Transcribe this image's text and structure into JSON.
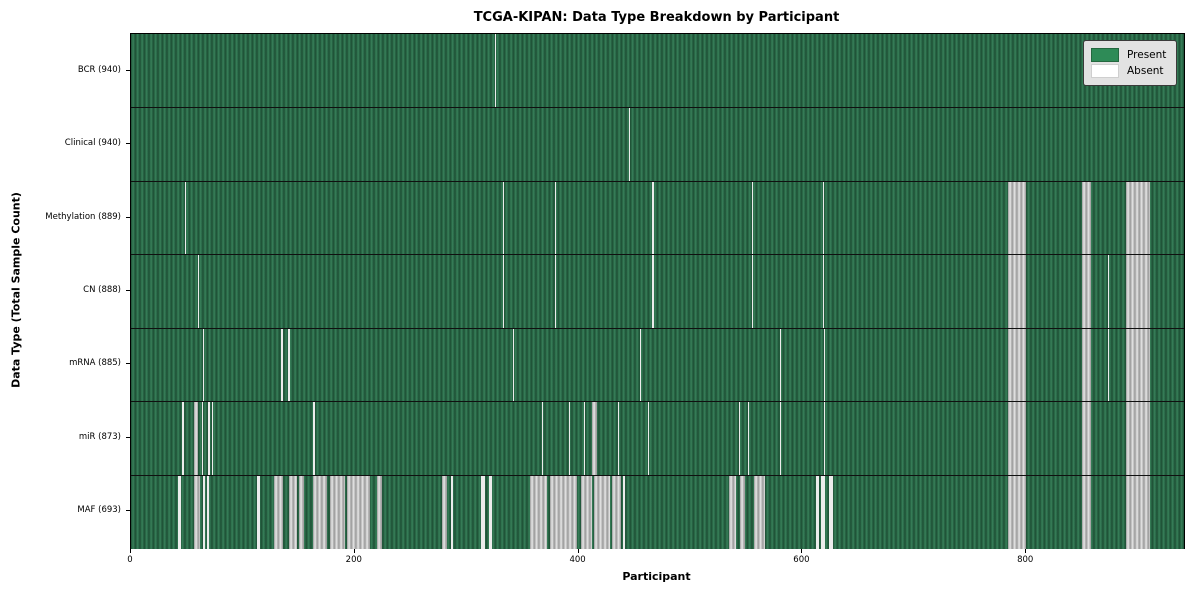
{
  "title": "TCGA-KIPAN: Data Type Breakdown by Participant",
  "x_axis_label": "Participant",
  "y_axis_label": "Data Type (Total Sample Count)",
  "legend": {
    "items": [
      {
        "label": "Present",
        "color": "#2e8b57"
      },
      {
        "label": "Absent",
        "color": "#ffffff"
      }
    ]
  },
  "colors": {
    "present_fill": "#2e8b57",
    "present_stripe_dark": "#1e4e34",
    "absent_fill": "#ffffff",
    "absent_stripe_gray": "#b4b4b4",
    "legend_background": "#e2e2e2",
    "plot_border": "#000000"
  },
  "chart_data": {
    "type": "heatmap",
    "title": "TCGA-KIPAN: Data Type Breakdown by Participant",
    "xlabel": "Participant",
    "ylabel": "Data Type (Total Sample Count)",
    "x_range": [
      0,
      941
    ],
    "x_ticks": [
      0,
      200,
      400,
      600,
      800
    ],
    "legend_entries": [
      "Present",
      "Absent"
    ],
    "cell_states": {
      "present": 1,
      "absent": 0
    },
    "rows": [
      {
        "data_type": "BCR",
        "label": "BCR (940)",
        "present_count": 940,
        "absent_ranges": [
          [
            325,
            326
          ]
        ]
      },
      {
        "data_type": "Clinical",
        "label": "Clinical (940)",
        "present_count": 940,
        "absent_ranges": [
          [
            445,
            446
          ]
        ]
      },
      {
        "data_type": "Methylation",
        "label": "Methylation (889)",
        "present_count": 889,
        "absent_ranges": [
          [
            48,
            49
          ],
          [
            332,
            333
          ],
          [
            379,
            380
          ],
          [
            466,
            467
          ],
          [
            555,
            556
          ],
          [
            618,
            619
          ],
          [
            784,
            800
          ],
          [
            850,
            858
          ],
          [
            889,
            911
          ]
        ]
      },
      {
        "data_type": "CN",
        "label": "CN (888)",
        "present_count": 888,
        "absent_ranges": [
          [
            60,
            61
          ],
          [
            332,
            333
          ],
          [
            379,
            380
          ],
          [
            466,
            467
          ],
          [
            555,
            556
          ],
          [
            618,
            619
          ],
          [
            784,
            800
          ],
          [
            850,
            858
          ],
          [
            873,
            874
          ],
          [
            889,
            911
          ]
        ]
      },
      {
        "data_type": "mRNA",
        "label": "mRNA (885)",
        "present_count": 885,
        "absent_ranges": [
          [
            64,
            65
          ],
          [
            134,
            136
          ],
          [
            140,
            142
          ],
          [
            341,
            342
          ],
          [
            455,
            456
          ],
          [
            580,
            581
          ],
          [
            619,
            620
          ],
          [
            784,
            800
          ],
          [
            850,
            858
          ],
          [
            873,
            874
          ],
          [
            889,
            911
          ]
        ]
      },
      {
        "data_type": "miR",
        "label": "miR (873)",
        "present_count": 873,
        "absent_ranges": [
          [
            46,
            47
          ],
          [
            56,
            60
          ],
          [
            63,
            64
          ],
          [
            69,
            70
          ],
          [
            72,
            73
          ],
          [
            163,
            164
          ],
          [
            367,
            368
          ],
          [
            391,
            392
          ],
          [
            405,
            406
          ],
          [
            412,
            416
          ],
          [
            435,
            436
          ],
          [
            462,
            463
          ],
          [
            543,
            544
          ],
          [
            551,
            552
          ],
          [
            580,
            581
          ],
          [
            619,
            620
          ],
          [
            784,
            800
          ],
          [
            850,
            858
          ],
          [
            889,
            911
          ]
        ]
      },
      {
        "data_type": "MAF",
        "label": "MAF (693)",
        "present_count": 693,
        "absent_ranges": [
          [
            42,
            45
          ],
          [
            56,
            62
          ],
          [
            64,
            66
          ],
          [
            68,
            70
          ],
          [
            113,
            115
          ],
          [
            128,
            136
          ],
          [
            141,
            148
          ],
          [
            150,
            155
          ],
          [
            163,
            175
          ],
          [
            178,
            191
          ],
          [
            193,
            214
          ],
          [
            220,
            224
          ],
          [
            278,
            282
          ],
          [
            286,
            288
          ],
          [
            313,
            316
          ],
          [
            320,
            323
          ],
          [
            357,
            372
          ],
          [
            374,
            399
          ],
          [
            402,
            412
          ],
          [
            414,
            428
          ],
          [
            430,
            438
          ],
          [
            440,
            441
          ],
          [
            534,
            541
          ],
          [
            544,
            549
          ],
          [
            557,
            567
          ],
          [
            612,
            615
          ],
          [
            617,
            620
          ],
          [
            624,
            627
          ],
          [
            784,
            800
          ],
          [
            850,
            858
          ],
          [
            889,
            911
          ]
        ]
      }
    ]
  }
}
